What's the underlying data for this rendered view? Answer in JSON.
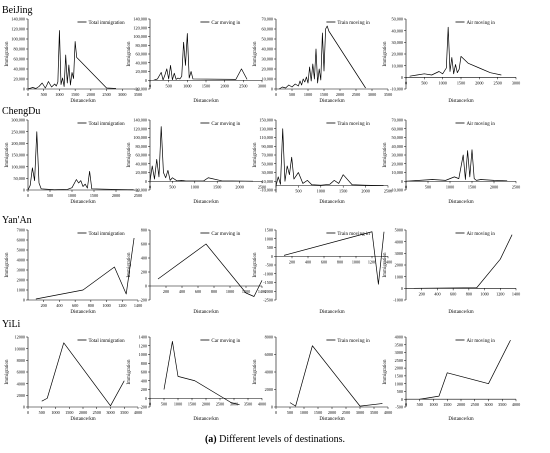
{
  "rows": [
    {
      "city": "BeiJing"
    },
    {
      "city": "ChengDu"
    },
    {
      "city": "Yan'An"
    },
    {
      "city": "YiLi"
    }
  ],
  "caption": {
    "tag": "(a)",
    "text": "Different levels of destinations."
  },
  "chart_data": [
    {
      "type": "line",
      "city": "BeiJing",
      "legend": "Total immigration",
      "ylabel": "Immigration",
      "xlabel": "Distance/km",
      "x": [
        0,
        150,
        250,
        350,
        450,
        550,
        600,
        650,
        750,
        850,
        900,
        950,
        1000,
        1050,
        1100,
        1150,
        1200,
        1250,
        1300,
        1350,
        1400,
        1450,
        1500,
        1550,
        1600,
        2500,
        2800
      ],
      "y": [
        0,
        3000,
        1000,
        5000,
        12000,
        2000,
        8000,
        15000,
        4000,
        10000,
        6000,
        14000,
        117000,
        9000,
        22000,
        5000,
        68000,
        12000,
        48000,
        8000,
        33000,
        21000,
        95000,
        63000,
        60000,
        2000,
        1000
      ],
      "xlim": [
        0,
        3500
      ],
      "ylim": [
        0,
        140000
      ],
      "xticks": [
        "0",
        "500",
        "1000",
        "1500",
        "2000",
        "2500",
        "3000",
        "3500"
      ],
      "yticks": [
        "0",
        "20,000",
        "40,000",
        "60,000",
        "80,000",
        "100,000",
        "120,000",
        "140,000"
      ]
    },
    {
      "type": "line",
      "city": "BeiJing",
      "legend": "Car moving in",
      "ylabel": "Immigration",
      "xlabel": "Distance/km",
      "x": [
        100,
        200,
        300,
        350,
        400,
        450,
        500,
        550,
        600,
        650,
        700,
        750,
        800,
        850,
        900,
        950,
        1000,
        1050,
        1100,
        1150,
        2300,
        2450,
        2600
      ],
      "y": [
        0,
        3000,
        18000,
        500,
        12000,
        26000,
        3000,
        34000,
        1000,
        16000,
        2000,
        5000,
        3000,
        9000,
        87000,
        34000,
        107000,
        5000,
        20000,
        3000,
        2000,
        26000,
        2000
      ],
      "xlim": [
        0,
        3000
      ],
      "ylim": [
        -20000,
        140000
      ],
      "xticks": [
        "0",
        "500",
        "1000",
        "1500",
        "2000",
        "2500",
        "3000"
      ],
      "yticks": [
        "-20,000",
        "0",
        "20,000",
        "40,000",
        "60,000",
        "80,000",
        "100,000",
        "120,000",
        "140,000"
      ]
    },
    {
      "type": "line",
      "city": "BeiJing",
      "legend": "Train moving in",
      "ylabel": "Immigration",
      "xlabel": "Distance/km",
      "x": [
        100,
        200,
        300,
        400,
        500,
        600,
        700,
        750,
        800,
        850,
        900,
        950,
        1000,
        1050,
        1100,
        1150,
        1200,
        1250,
        1300,
        1350,
        1400,
        1450,
        1500,
        1550,
        1600,
        1650,
        2800
      ],
      "y": [
        0,
        2000,
        1000,
        4000,
        2000,
        5000,
        3000,
        8000,
        4000,
        10000,
        7000,
        12000,
        6000,
        22000,
        8000,
        25000,
        10000,
        40000,
        6000,
        20000,
        9000,
        56000,
        18000,
        60000,
        63000,
        58000,
        1000
      ],
      "xlim": [
        0,
        3500
      ],
      "ylim": [
        0,
        70000
      ],
      "xticks": [
        "0",
        "500",
        "1000",
        "1500",
        "2000",
        "2500",
        "3000",
        "3500"
      ],
      "yticks": [
        "0",
        "10,000",
        "20,000",
        "30,000",
        "40,000",
        "50,000",
        "60,000",
        "70,000"
      ]
    },
    {
      "type": "line",
      "city": "BeiJing",
      "legend": "Air moving in",
      "ylabel": "Immigration",
      "xlabel": "Distance/km",
      "x": [
        100,
        300,
        500,
        700,
        900,
        1000,
        1100,
        1150,
        1200,
        1250,
        1300,
        1350,
        1400,
        1450,
        1500,
        1600,
        1700,
        2000,
        2300,
        2600
      ],
      "y": [
        1000,
        2000,
        3000,
        2000,
        5000,
        3000,
        8000,
        43000,
        5000,
        17000,
        3000,
        11000,
        4000,
        7000,
        18000,
        15000,
        12000,
        8000,
        4000,
        2000
      ],
      "xlim": [
        0,
        3000
      ],
      "ylim": [
        -10000,
        50000
      ],
      "xticks": [
        "0",
        "500",
        "1000",
        "1500",
        "2000",
        "2500",
        "3000"
      ],
      "yticks": [
        "-10,000",
        "0",
        "10,000",
        "20,000",
        "30,000",
        "40,000",
        "50,000"
      ]
    },
    {
      "type": "line",
      "city": "ChengDu",
      "legend": "Total immigration",
      "ylabel": "Immigration",
      "xlabel": "Distance/km",
      "x": [
        0,
        50,
        100,
        150,
        200,
        250,
        300,
        600,
        900,
        1000,
        1100,
        1150,
        1200,
        1250,
        1300,
        1350,
        1400,
        1450,
        2000,
        2400
      ],
      "y": [
        0,
        20000,
        95000,
        40000,
        250000,
        30000,
        5000,
        1000,
        3000,
        10000,
        45000,
        30000,
        40000,
        15000,
        25000,
        8000,
        80000,
        5000,
        2000,
        1000
      ],
      "xlim": [
        0,
        2500
      ],
      "ylim": [
        0,
        300000
      ],
      "xticks": [
        "0",
        "500",
        "1000",
        "1500",
        "2000",
        "2500"
      ],
      "yticks": [
        "0",
        "50,000",
        "100,000",
        "150,000",
        "200,000",
        "250,000",
        "300,000"
      ]
    },
    {
      "type": "line",
      "city": "ChengDu",
      "legend": "Car moving in",
      "ylabel": "Immigration",
      "xlabel": "Distance/km",
      "x": [
        0,
        50,
        100,
        150,
        200,
        250,
        300,
        350,
        400,
        450,
        500,
        600,
        700,
        800,
        1200,
        1300,
        1600,
        2300
      ],
      "y": [
        0,
        35000,
        5000,
        50000,
        10000,
        125000,
        20000,
        8000,
        25000,
        2000,
        8000,
        1000,
        2000,
        500,
        1000,
        8000,
        1000,
        0
      ],
      "xlim": [
        0,
        2500
      ],
      "ylim": [
        -20000,
        140000
      ],
      "xticks": [
        "0",
        "500",
        "1000",
        "1500",
        "2000",
        "2500"
      ],
      "yticks": [
        "-20,000",
        "0",
        "20,000",
        "40,000",
        "60,000",
        "80,000",
        "100,000",
        "120,000",
        "140,000"
      ]
    },
    {
      "type": "line",
      "city": "ChengDu",
      "legend": "Train moving in",
      "ylabel": "Immigration",
      "xlabel": "Distance/km",
      "x": [
        0,
        50,
        100,
        150,
        200,
        250,
        300,
        350,
        400,
        500,
        600,
        700,
        800,
        1000,
        1200,
        1300,
        1400,
        1500,
        1700,
        2000,
        2400
      ],
      "y": [
        0,
        20000,
        3000,
        130000,
        10000,
        45000,
        25000,
        65000,
        15000,
        30000,
        5000,
        12000,
        2000,
        1000,
        3000,
        12000,
        5000,
        25000,
        2000,
        1000,
        0
      ],
      "xlim": [
        0,
        2500
      ],
      "ylim": [
        -10000,
        150000
      ],
      "xticks": [
        "0",
        "500",
        "1000",
        "1500",
        "2000",
        "2500"
      ],
      "yticks": [
        "-10,000",
        "10,000",
        "30,000",
        "50,000",
        "70,000",
        "90,000",
        "110,000",
        "130,000",
        "150,000"
      ]
    },
    {
      "type": "line",
      "city": "ChengDu",
      "legend": "Air moving in",
      "ylabel": "Immigration",
      "xlabel": "Distance/km",
      "x": [
        0,
        300,
        600,
        900,
        1100,
        1200,
        1300,
        1350,
        1400,
        1450,
        1500,
        1550,
        1600,
        1700,
        2000,
        2300
      ],
      "y": [
        0,
        1000,
        2000,
        1000,
        5000,
        3000,
        30000,
        2000,
        35000,
        5000,
        36000,
        3000,
        1000,
        2000,
        1000,
        500
      ],
      "xlim": [
        0,
        2500
      ],
      "ylim": [
        -10000,
        70000
      ],
      "xticks": [
        "0",
        "500",
        "1000",
        "1500",
        "2000",
        "2500"
      ],
      "yticks": [
        "-10,000",
        "0",
        "10,000",
        "20,000",
        "30,000",
        "40,000",
        "50,000",
        "60,000",
        "70,000"
      ]
    },
    {
      "type": "line",
      "city": "Yan'An",
      "legend": "Total immigration",
      "ylabel": "Immigration",
      "xlabel": "Distance/km",
      "x": [
        100,
        700,
        1100,
        1250,
        1350
      ],
      "y": [
        100,
        1000,
        3300,
        600,
        6200
      ],
      "xlim": [
        0,
        1400
      ],
      "ylim": [
        0,
        7000
      ],
      "xticks": [
        "200",
        "400",
        "600",
        "800",
        "1000",
        "1200",
        "1400"
      ],
      "yticks": [
        "0",
        "1000",
        "2000",
        "3000",
        "4000",
        "5000",
        "6000",
        "7000"
      ]
    },
    {
      "type": "line",
      "city": "Yan'An",
      "legend": "Car moving in",
      "ylabel": "Immigration",
      "xlabel": "Distance/km",
      "x": [
        100,
        700,
        1200,
        1300,
        1400
      ],
      "y": [
        100,
        600,
        -100,
        -150,
        80
      ],
      "xlim": [
        0,
        1400
      ],
      "ylim": [
        -200,
        800
      ],
      "xticks": [
        "200",
        "400",
        "600",
        "800",
        "1000",
        "1200",
        "1400"
      ],
      "yticks": [
        "-200",
        "0",
        "200",
        "400",
        "600",
        "800"
      ]
    },
    {
      "type": "line",
      "city": "Yan'An",
      "legend": "Train moving in",
      "ylabel": "Immigration",
      "xlabel": "Distance/km",
      "x": [
        100,
        1200,
        1280,
        1350
      ],
      "y": [
        50,
        1400,
        -1600,
        1400
      ],
      "xlim": [
        0,
        1400
      ],
      "ylim": [
        -2500,
        1500
      ],
      "xticks": [
        "200",
        "400",
        "600",
        "800",
        "1000",
        "1200",
        "1400"
      ],
      "yticks": [
        "-2500",
        "-2000",
        "-1500",
        "-1000",
        "-500",
        "0",
        "500",
        "1000",
        "1500"
      ]
    },
    {
      "type": "line",
      "city": "Yan'An",
      "legend": "Air moving in",
      "ylabel": "Immigration",
      "xlabel": "Distance/km",
      "x": [
        100,
        900,
        1200,
        1350
      ],
      "y": [
        0,
        50,
        2500,
        4600
      ],
      "xlim": [
        0,
        1400
      ],
      "ylim": [
        -1000,
        5000
      ],
      "xticks": [
        "200",
        "400",
        "600",
        "800",
        "1000",
        "1200",
        "1400"
      ],
      "yticks": [
        "-1000",
        "0",
        "1000",
        "2000",
        "3000",
        "4000",
        "5000"
      ]
    },
    {
      "type": "line",
      "city": "YiLi",
      "legend": "Total immigration",
      "ylabel": "Immigration",
      "xlabel": "Distance/km",
      "x": [
        500,
        700,
        1300,
        3000,
        3500
      ],
      "y": [
        1000,
        1500,
        11000,
        200,
        4500
      ],
      "xlim": [
        0,
        4000
      ],
      "ylim": [
        0,
        12000
      ],
      "xticks": [
        "0",
        "500",
        "1000",
        "1500",
        "2000",
        "2500",
        "3000",
        "3500",
        "4000"
      ],
      "yticks": [
        "0",
        "2000",
        "4000",
        "6000",
        "8000",
        "10000",
        "12000"
      ]
    },
    {
      "type": "line",
      "city": "YiLi",
      "legend": "Car moving in",
      "ylabel": "Immigration",
      "xlabel": "Distance/km",
      "x": [
        500,
        800,
        1000,
        1600,
        2900,
        3200
      ],
      "y": [
        200,
        1300,
        500,
        400,
        -100,
        -150
      ],
      "xlim": [
        0,
        4000
      ],
      "ylim": [
        -200,
        1400
      ],
      "xticks": [
        "0",
        "500",
        "1000",
        "1500",
        "2000",
        "2500",
        "3000",
        "3500",
        "4000"
      ],
      "yticks": [
        "-200",
        "0",
        "200",
        "400",
        "600",
        "800",
        "1000",
        "1200",
        "1400"
      ]
    },
    {
      "type": "line",
      "city": "YiLi",
      "legend": "Train moving in",
      "ylabel": "Immigration",
      "xlabel": "Distance/km",
      "x": [
        500,
        700,
        1300,
        3000,
        3800
      ],
      "y": [
        500,
        100,
        7000,
        100,
        400
      ],
      "xlim": [
        0,
        4000
      ],
      "ylim": [
        0,
        8000
      ],
      "xticks": [
        "0",
        "500",
        "1000",
        "1500",
        "2000",
        "2500",
        "3000",
        "3500",
        "4000"
      ],
      "yticks": [
        "0",
        "2000",
        "4000",
        "6000",
        "8000"
      ]
    },
    {
      "type": "line",
      "city": "YiLi",
      "legend": "Air moving in",
      "ylabel": "Immigration",
      "xlabel": "Distance/km",
      "x": [
        500,
        1200,
        1500,
        3000,
        3800
      ],
      "y": [
        0,
        200,
        1700,
        1000,
        3800
      ],
      "xlim": [
        0,
        4000
      ],
      "ylim": [
        -500,
        4000
      ],
      "xticks": [
        "0",
        "500",
        "1000",
        "1500",
        "2000",
        "2500",
        "3000",
        "3500",
        "4000"
      ],
      "yticks": [
        "-500",
        "0",
        "500",
        "1000",
        "1500",
        "2000",
        "2500",
        "3000",
        "3500",
        "4000"
      ]
    }
  ]
}
